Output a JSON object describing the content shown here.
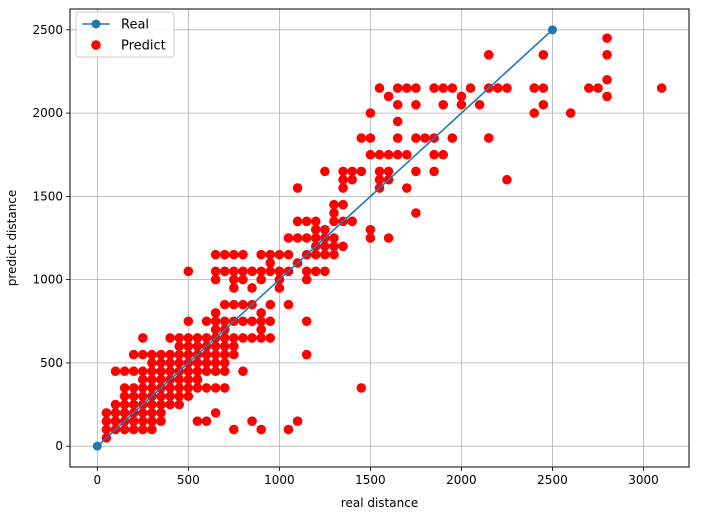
{
  "chart_data": {
    "type": "scatter",
    "xlabel": "real distance",
    "ylabel": "predict distance",
    "xlim": [
      -150,
      3250
    ],
    "ylim": [
      -125,
      2625
    ],
    "xticks": [
      0,
      500,
      1000,
      1500,
      2000,
      2500,
      3000
    ],
    "yticks": [
      0,
      500,
      1000,
      1500,
      2000,
      2500
    ],
    "grid": true,
    "legend_position": "top-left",
    "series": [
      {
        "name": "Real",
        "kind": "line",
        "color": "#1f77b4",
        "points": [
          [
            0,
            0
          ],
          [
            2500,
            2500
          ]
        ]
      },
      {
        "name": "Predict",
        "kind": "scatter",
        "color": "#ff0000",
        "points": [
          [
            50,
            50
          ],
          [
            50,
            100
          ],
          [
            50,
            150
          ],
          [
            50,
            200
          ],
          [
            100,
            100
          ],
          [
            100,
            150
          ],
          [
            100,
            200
          ],
          [
            100,
            250
          ],
          [
            100,
            450
          ],
          [
            150,
            100
          ],
          [
            150,
            150
          ],
          [
            150,
            200
          ],
          [
            150,
            250
          ],
          [
            150,
            300
          ],
          [
            150,
            350
          ],
          [
            150,
            450
          ],
          [
            200,
            100
          ],
          [
            200,
            150
          ],
          [
            200,
            200
          ],
          [
            200,
            250
          ],
          [
            200,
            300
          ],
          [
            200,
            350
          ],
          [
            200,
            450
          ],
          [
            200,
            550
          ],
          [
            250,
            100
          ],
          [
            250,
            150
          ],
          [
            250,
            200
          ],
          [
            250,
            250
          ],
          [
            250,
            300
          ],
          [
            250,
            350
          ],
          [
            250,
            400
          ],
          [
            250,
            450
          ],
          [
            250,
            550
          ],
          [
            250,
            650
          ],
          [
            300,
            100
          ],
          [
            300,
            150
          ],
          [
            300,
            200
          ],
          [
            300,
            250
          ],
          [
            300,
            300
          ],
          [
            300,
            350
          ],
          [
            300,
            400
          ],
          [
            300,
            450
          ],
          [
            300,
            500
          ],
          [
            300,
            550
          ],
          [
            350,
            150
          ],
          [
            350,
            200
          ],
          [
            350,
            250
          ],
          [
            350,
            300
          ],
          [
            350,
            350
          ],
          [
            350,
            400
          ],
          [
            350,
            450
          ],
          [
            350,
            500
          ],
          [
            350,
            550
          ],
          [
            400,
            250
          ],
          [
            400,
            300
          ],
          [
            400,
            350
          ],
          [
            400,
            400
          ],
          [
            400,
            450
          ],
          [
            400,
            500
          ],
          [
            400,
            550
          ],
          [
            400,
            650
          ],
          [
            450,
            250
          ],
          [
            450,
            300
          ],
          [
            450,
            350
          ],
          [
            450,
            400
          ],
          [
            450,
            450
          ],
          [
            450,
            500
          ],
          [
            450,
            550
          ],
          [
            450,
            600
          ],
          [
            450,
            650
          ],
          [
            500,
            300
          ],
          [
            500,
            350
          ],
          [
            500,
            400
          ],
          [
            500,
            450
          ],
          [
            500,
            500
          ],
          [
            500,
            550
          ],
          [
            500,
            600
          ],
          [
            500,
            650
          ],
          [
            500,
            750
          ],
          [
            500,
            1050
          ],
          [
            550,
            150
          ],
          [
            550,
            350
          ],
          [
            550,
            400
          ],
          [
            550,
            450
          ],
          [
            550,
            500
          ],
          [
            550,
            550
          ],
          [
            550,
            600
          ],
          [
            550,
            650
          ],
          [
            600,
            150
          ],
          [
            600,
            350
          ],
          [
            600,
            450
          ],
          [
            600,
            500
          ],
          [
            600,
            550
          ],
          [
            600,
            600
          ],
          [
            600,
            650
          ],
          [
            600,
            750
          ],
          [
            650,
            200
          ],
          [
            650,
            350
          ],
          [
            650,
            450
          ],
          [
            650,
            500
          ],
          [
            650,
            550
          ],
          [
            650,
            600
          ],
          [
            650,
            650
          ],
          [
            650,
            700
          ],
          [
            650,
            750
          ],
          [
            650,
            800
          ],
          [
            650,
            1000
          ],
          [
            650,
            1050
          ],
          [
            650,
            1150
          ],
          [
            700,
            350
          ],
          [
            700,
            450
          ],
          [
            700,
            500
          ],
          [
            700,
            550
          ],
          [
            700,
            600
          ],
          [
            700,
            650
          ],
          [
            700,
            700
          ],
          [
            700,
            750
          ],
          [
            700,
            850
          ],
          [
            700,
            1050
          ],
          [
            700,
            1150
          ],
          [
            750,
            100
          ],
          [
            750,
            550
          ],
          [
            750,
            600
          ],
          [
            750,
            650
          ],
          [
            750,
            750
          ],
          [
            750,
            850
          ],
          [
            750,
            950
          ],
          [
            750,
            1000
          ],
          [
            750,
            1050
          ],
          [
            750,
            1150
          ],
          [
            800,
            450
          ],
          [
            800,
            650
          ],
          [
            800,
            750
          ],
          [
            800,
            850
          ],
          [
            800,
            1000
          ],
          [
            800,
            1050
          ],
          [
            800,
            1150
          ],
          [
            850,
            150
          ],
          [
            850,
            650
          ],
          [
            850,
            750
          ],
          [
            850,
            850
          ],
          [
            850,
            950
          ],
          [
            850,
            1050
          ],
          [
            900,
            100
          ],
          [
            900,
            650
          ],
          [
            900,
            700
          ],
          [
            900,
            750
          ],
          [
            900,
            800
          ],
          [
            900,
            1000
          ],
          [
            900,
            1050
          ],
          [
            900,
            1150
          ],
          [
            950,
            650
          ],
          [
            950,
            750
          ],
          [
            950,
            850
          ],
          [
            950,
            1050
          ],
          [
            950,
            1100
          ],
          [
            950,
            1150
          ],
          [
            1000,
            950
          ],
          [
            1000,
            1000
          ],
          [
            1000,
            1050
          ],
          [
            1000,
            1150
          ],
          [
            1050,
            100
          ],
          [
            1050,
            850
          ],
          [
            1050,
            1050
          ],
          [
            1050,
            1150
          ],
          [
            1050,
            1250
          ],
          [
            1100,
            150
          ],
          [
            1100,
            1100
          ],
          [
            1100,
            1250
          ],
          [
            1100,
            1350
          ],
          [
            1100,
            1550
          ],
          [
            1150,
            550
          ],
          [
            1150,
            750
          ],
          [
            1150,
            1000
          ],
          [
            1150,
            1050
          ],
          [
            1150,
            1150
          ],
          [
            1150,
            1250
          ],
          [
            1150,
            1350
          ],
          [
            1200,
            1050
          ],
          [
            1200,
            1150
          ],
          [
            1200,
            1200
          ],
          [
            1200,
            1250
          ],
          [
            1200,
            1300
          ],
          [
            1200,
            1350
          ],
          [
            1250,
            1050
          ],
          [
            1250,
            1150
          ],
          [
            1250,
            1200
          ],
          [
            1250,
            1250
          ],
          [
            1250,
            1300
          ],
          [
            1250,
            1650
          ],
          [
            1300,
            1150
          ],
          [
            1300,
            1200
          ],
          [
            1300,
            1250
          ],
          [
            1300,
            1350
          ],
          [
            1300,
            1400
          ],
          [
            1300,
            1450
          ],
          [
            1350,
            1200
          ],
          [
            1350,
            1350
          ],
          [
            1350,
            1450
          ],
          [
            1350,
            1550
          ],
          [
            1350,
            1600
          ],
          [
            1350,
            1650
          ],
          [
            1400,
            1350
          ],
          [
            1400,
            1600
          ],
          [
            1400,
            1650
          ],
          [
            1450,
            350
          ],
          [
            1450,
            1650
          ],
          [
            1450,
            1850
          ],
          [
            1500,
            1250
          ],
          [
            1500,
            1300
          ],
          [
            1500,
            1750
          ],
          [
            1500,
            1850
          ],
          [
            1500,
            2000
          ],
          [
            1550,
            1550
          ],
          [
            1550,
            1600
          ],
          [
            1550,
            1650
          ],
          [
            1550,
            1750
          ],
          [
            1550,
            2150
          ],
          [
            1600,
            1250
          ],
          [
            1600,
            1600
          ],
          [
            1600,
            1650
          ],
          [
            1600,
            1750
          ],
          [
            1600,
            2100
          ],
          [
            1650,
            1750
          ],
          [
            1650,
            1850
          ],
          [
            1650,
            1950
          ],
          [
            1650,
            2050
          ],
          [
            1650,
            2150
          ],
          [
            1700,
            1550
          ],
          [
            1700,
            1750
          ],
          [
            1700,
            2150
          ],
          [
            1750,
            1400
          ],
          [
            1750,
            1650
          ],
          [
            1750,
            1850
          ],
          [
            1750,
            2050
          ],
          [
            1750,
            2150
          ],
          [
            1800,
            1850
          ],
          [
            1850,
            1650
          ],
          [
            1850,
            1750
          ],
          [
            1850,
            1850
          ],
          [
            1850,
            2150
          ],
          [
            1900,
            1750
          ],
          [
            1900,
            2050
          ],
          [
            1900,
            2150
          ],
          [
            1950,
            1850
          ],
          [
            1950,
            2150
          ],
          [
            2000,
            2050
          ],
          [
            2000,
            2100
          ],
          [
            2050,
            2150
          ],
          [
            2100,
            2050
          ],
          [
            2150,
            1850
          ],
          [
            2150,
            2150
          ],
          [
            2150,
            2350
          ],
          [
            2200,
            2150
          ],
          [
            2250,
            1600
          ],
          [
            2250,
            2150
          ],
          [
            2400,
            2000
          ],
          [
            2400,
            2150
          ],
          [
            2450,
            2050
          ],
          [
            2450,
            2150
          ],
          [
            2450,
            2350
          ],
          [
            2600,
            2000
          ],
          [
            2700,
            2150
          ],
          [
            2750,
            2150
          ],
          [
            2800,
            2100
          ],
          [
            2800,
            2200
          ],
          [
            2800,
            2350
          ],
          [
            2800,
            2450
          ],
          [
            3100,
            2150
          ]
        ]
      }
    ]
  }
}
